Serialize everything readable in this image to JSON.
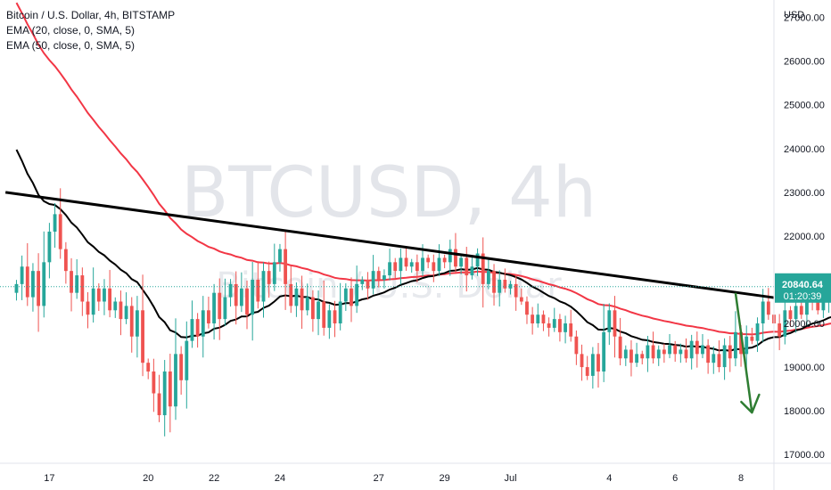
{
  "legend": {
    "symbol": "Bitcoin / U.S. Dollar, 4h, BITSTAMP",
    "ema20": "EMA (20, close, 0, SMA, 5)",
    "ema50": "EMA (50, close, 0, SMA, 5)"
  },
  "watermark": {
    "ticker": "BTCUSD, 4h",
    "description": "Bitcoin / U.S. Dollar"
  },
  "price_tag": {
    "price": "20840.64",
    "countdown": "01:20:39"
  },
  "colors": {
    "up": "#26a69a",
    "down": "#ef5350",
    "ema20": "#000000",
    "ema50": "#f23645",
    "trendline": "#000000",
    "arrow": "#2e7d32",
    "price_tag": "#26a69a"
  },
  "chart_data": {
    "type": "candlestick",
    "currency": "USD",
    "ylim": [
      16800,
      27400
    ],
    "y_ticks": [
      27000,
      26000,
      25000,
      24000,
      23000,
      22000,
      21000,
      20000,
      19000,
      18000,
      17000
    ],
    "y_tick_labels": [
      "27000.00",
      "26000.00",
      "25000.00",
      "24000.00",
      "23000.00",
      "22000.00",
      "21000.00",
      "20000.00",
      "19000.00",
      "18000.00",
      "17000.00"
    ],
    "x_range": [
      "2022-06-15 12:00",
      "2022-07-09 00:00"
    ],
    "x_ticks": [
      {
        "label": "17",
        "t": "2022-06-17 00:00"
      },
      {
        "label": "20",
        "t": "2022-06-20 00:00"
      },
      {
        "label": "22",
        "t": "2022-06-22 00:00"
      },
      {
        "label": "24",
        "t": "2022-06-24 00:00"
      },
      {
        "label": "27",
        "t": "2022-06-27 00:00"
      },
      {
        "label": "29",
        "t": "2022-06-29 00:00"
      },
      {
        "label": "Jul",
        "t": "2022-07-01 00:00"
      },
      {
        "label": "4",
        "t": "2022-07-04 00:00"
      },
      {
        "label": "6",
        "t": "2022-07-06 00:00"
      },
      {
        "label": "8",
        "t": "2022-07-08 00:00"
      }
    ],
    "candles_start": "2022-06-16 00:00",
    "candle_interval_hours": 4,
    "close": [
      20900,
      21300,
      20600,
      21200,
      20400,
      21400,
      22100,
      22500,
      21700,
      21200,
      20700,
      21100,
      20500,
      20200,
      20800,
      20500,
      20800,
      20300,
      20500,
      20100,
      20400,
      19700,
      20300,
      19100,
      18900,
      18400,
      17900,
      18900,
      18100,
      19300,
      18700,
      19600,
      20100,
      19700,
      20300,
      20000,
      20700,
      20100,
      20600,
      20900,
      20400,
      20800,
      20200,
      21000,
      20500,
      21200,
      20900,
      21400,
      21700,
      20900,
      20400,
      20800,
      20300,
      20600,
      20100,
      20500,
      19900,
      20300,
      20000,
      20500,
      20800,
      20400,
      20900,
      21000,
      20800,
      21200,
      21000,
      21100,
      21400,
      21200,
      21500,
      21300,
      21400,
      21200,
      21500,
      21400,
      21200,
      21500,
      21400,
      21700,
      21300,
      21500,
      21100,
      21300,
      21600,
      20900,
      21200,
      20700,
      21000,
      20800,
      20900,
      20600,
      20500,
      20200,
      20000,
      20200,
      20000,
      19900,
      20100,
      19800,
      20000,
      19700,
      19300,
      19000,
      18800,
      19300,
      18900,
      19800,
      20300,
      19700,
      19200,
      19400,
      19100,
      19300,
      19200,
      19500,
      19200,
      19400,
      19300,
      19500,
      19300,
      19400,
      19200,
      19600,
      19300,
      19500,
      19100,
      19300,
      19000,
      19500,
      19200,
      19800,
      19300,
      19700,
      19600,
      20000,
      20500,
      20200,
      20000,
      19700,
      20300,
      20100,
      20400,
      20200,
      20600,
      20500,
      20300,
      20500,
      20700,
      20500,
      20840.64
    ],
    "ema20_end": 20150,
    "ema50_end": 20020,
    "trendline": {
      "start": {
        "t": "2022-06-15 16:00",
        "price": 23000
      },
      "end": {
        "t": "2022-07-09 00:00",
        "price": 20590
      }
    },
    "projection_arrow": {
      "start": {
        "t": "2022-07-07 20:00",
        "price": 20700
      },
      "end": {
        "t": "2022-07-08 08:00",
        "price": 17960
      }
    },
    "last_price": 20840.64
  }
}
